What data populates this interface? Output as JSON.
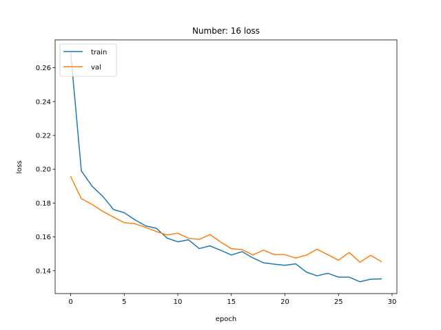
{
  "chart_data": {
    "type": "line",
    "title": "Number: 16 loss",
    "xlabel": "epoch",
    "ylabel": "loss",
    "xlim": [
      -1.45,
      30.45
    ],
    "ylim": [
      0.1265,
      0.2765
    ],
    "xticks": [
      0,
      5,
      10,
      15,
      20,
      25,
      30
    ],
    "xtick_labels": [
      "0",
      "5",
      "10",
      "15",
      "20",
      "25",
      "30"
    ],
    "yticks": [
      0.14,
      0.16,
      0.18,
      0.2,
      0.22,
      0.24,
      0.26
    ],
    "ytick_labels": [
      "0.14",
      "0.16",
      "0.18",
      "0.20",
      "0.22",
      "0.24",
      "0.26"
    ],
    "grid": false,
    "legend_position": "upper-left",
    "x": [
      0,
      1,
      2,
      3,
      4,
      5,
      6,
      7,
      8,
      9,
      10,
      11,
      12,
      13,
      14,
      15,
      16,
      17,
      18,
      19,
      20,
      21,
      22,
      23,
      24,
      25,
      26,
      27,
      28,
      29
    ],
    "series": [
      {
        "name": "train",
        "color": "#1f77b4",
        "values": [
          0.269,
          0.199,
          0.19,
          0.184,
          0.1762,
          0.1743,
          0.1701,
          0.1665,
          0.1651,
          0.1593,
          0.1571,
          0.1583,
          0.1531,
          0.1547,
          0.1521,
          0.1493,
          0.1513,
          0.1476,
          0.1447,
          0.1439,
          0.1432,
          0.1441,
          0.1392,
          0.137,
          0.1385,
          0.1362,
          0.1362,
          0.1335,
          0.135,
          0.1352
        ]
      },
      {
        "name": "val",
        "color": "#ff7f0e",
        "values": [
          0.1957,
          0.1826,
          0.1792,
          0.1751,
          0.1717,
          0.1684,
          0.1678,
          0.1656,
          0.1632,
          0.1611,
          0.1622,
          0.1592,
          0.1585,
          0.1614,
          0.157,
          0.153,
          0.1525,
          0.1493,
          0.1522,
          0.1495,
          0.1495,
          0.1475,
          0.1492,
          0.1527,
          0.1495,
          0.1462,
          0.1508,
          0.145,
          0.1491,
          0.1454
        ]
      }
    ]
  }
}
